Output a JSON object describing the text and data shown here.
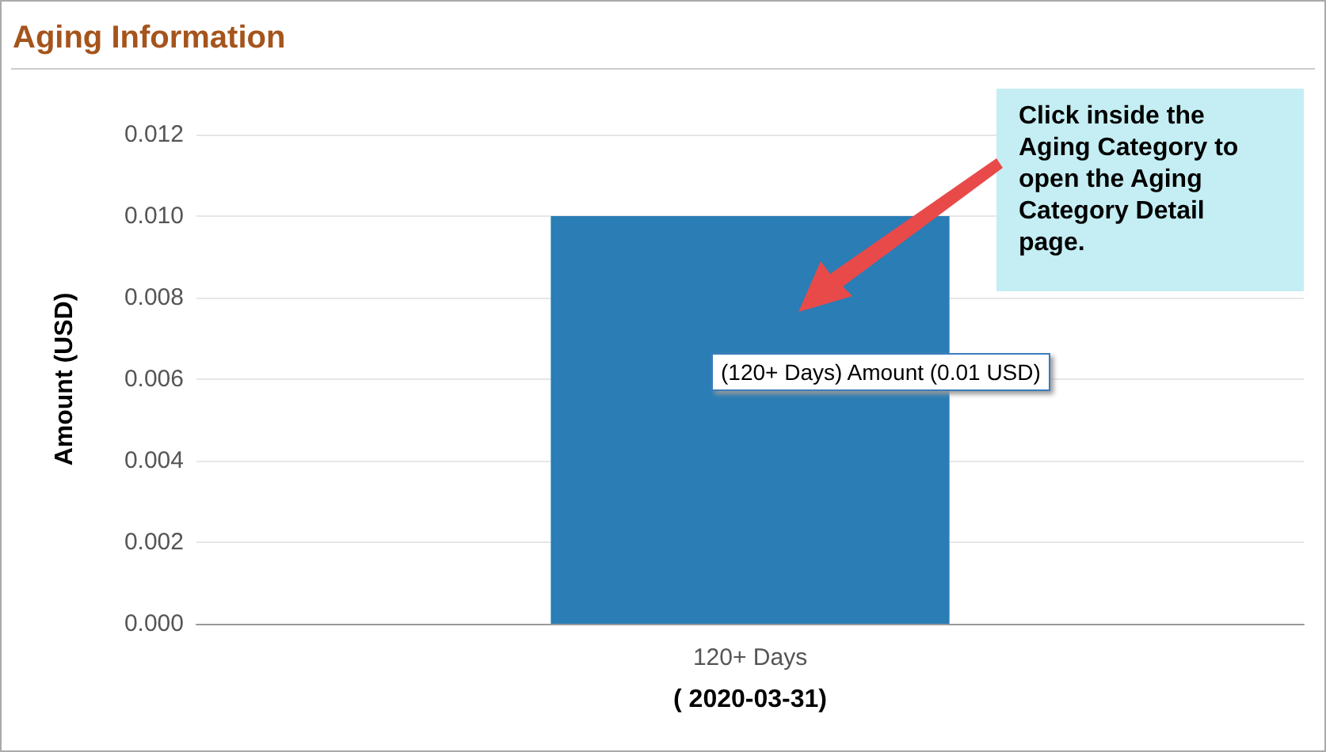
{
  "chart_data": {
    "type": "bar",
    "title": "Aging Information",
    "xlabel": "( 2020-03-31)",
    "ylabel": "Amount (USD)",
    "categories": [
      "120+ Days"
    ],
    "series": [
      {
        "color": "#2a7db5",
        "values": [
          0.01
        ]
      }
    ],
    "ylim": [
      0,
      0.012
    ],
    "yticks": [
      {
        "value": 0,
        "label": "0.000"
      },
      {
        "value": 0.002,
        "label": "0.002"
      },
      {
        "value": 0.004,
        "label": "0.004"
      },
      {
        "value": 0.006,
        "label": "0.006"
      },
      {
        "value": 0.008,
        "label": "0.008"
      },
      {
        "value": 0.01,
        "label": "0.010"
      },
      {
        "value": 0.012,
        "label": "0.012"
      }
    ],
    "grid": "y",
    "annotations": [
      "Click inside the Aging Category to open the Aging Category Detail page.",
      "(120+ Days) Amount (0.01 USD)"
    ]
  }
}
